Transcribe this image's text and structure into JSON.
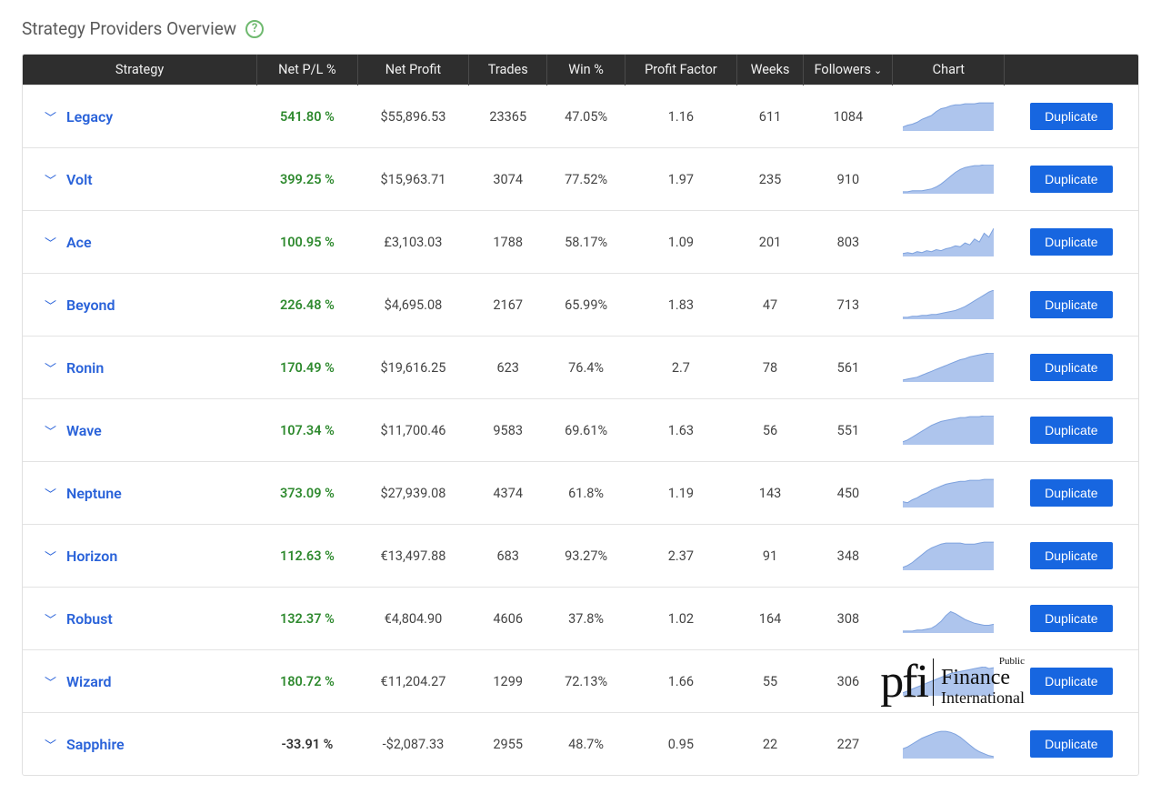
{
  "page": {
    "title": "Strategy Providers Overview",
    "help_tooltip": "?"
  },
  "table": {
    "headers": {
      "strategy": "Strategy",
      "net_pl": "Net P/L %",
      "net_profit": "Net Profit",
      "trades": "Trades",
      "win": "Win %",
      "profit_factor": "Profit Factor",
      "weeks": "Weeks",
      "followers": "Followers",
      "chart": "Chart",
      "action": ""
    },
    "sort_column": "followers",
    "sort_dir": "desc",
    "action_label": "Duplicate",
    "chart_style": {
      "width": 100,
      "height": 32,
      "fill_color": "#aec5ed",
      "stroke_color": "#7ea2de"
    },
    "colors": {
      "header_bg": "#2e2e2e",
      "header_fg": "#f0f0f0",
      "link": "#2962d9",
      "positive": "#2f8a2f",
      "negative": "#333333",
      "button_bg": "#1766e0",
      "border": "#e3e3e3"
    },
    "rows": [
      {
        "name": "Legacy",
        "net_pl": "541.80 %",
        "pl_positive": true,
        "net_profit": "$55,896.53",
        "trades": "23365",
        "win": "47.05%",
        "profit_factor": "1.16",
        "weeks": "611",
        "followers": "1084",
        "spark": [
          4,
          6,
          7,
          9,
          12,
          14,
          16,
          20,
          23,
          24,
          26,
          27,
          27,
          28,
          28,
          28,
          29,
          29,
          29,
          29
        ]
      },
      {
        "name": "Volt",
        "net_pl": "399.25 %",
        "pl_positive": true,
        "net_profit": "$15,963.71",
        "trades": "3074",
        "win": "77.52%",
        "profit_factor": "1.97",
        "weeks": "235",
        "followers": "910",
        "spark": [
          2,
          2,
          3,
          3,
          3,
          4,
          5,
          7,
          10,
          14,
          18,
          22,
          25,
          27,
          28,
          29,
          29,
          30,
          30,
          30
        ]
      },
      {
        "name": "Ace",
        "net_pl": "100.95 %",
        "pl_positive": true,
        "net_profit": "£3,103.03",
        "trades": "1788",
        "win": "58.17%",
        "profit_factor": "1.09",
        "weeks": "201",
        "followers": "803",
        "spark": [
          3,
          4,
          3,
          5,
          4,
          6,
          5,
          7,
          6,
          8,
          9,
          11,
          10,
          14,
          12,
          18,
          15,
          24,
          20,
          29
        ]
      },
      {
        "name": "Beyond",
        "net_pl": "226.48 %",
        "pl_positive": true,
        "net_profit": "$4,695.08",
        "trades": "2167",
        "win": "65.99%",
        "profit_factor": "1.83",
        "weeks": "47",
        "followers": "713",
        "spark": [
          2,
          2,
          3,
          3,
          4,
          4,
          5,
          5,
          6,
          7,
          8,
          9,
          11,
          13,
          16,
          19,
          22,
          25,
          28,
          30
        ]
      },
      {
        "name": "Ronin",
        "net_pl": "170.49 %",
        "pl_positive": true,
        "net_profit": "$19,616.25",
        "trades": "623",
        "win": "76.4%",
        "profit_factor": "2.7",
        "weeks": "78",
        "followers": "561",
        "spark": [
          2,
          3,
          4,
          5,
          7,
          9,
          11,
          13,
          15,
          17,
          19,
          21,
          23,
          24,
          26,
          27,
          28,
          29,
          30,
          30
        ]
      },
      {
        "name": "Wave",
        "net_pl": "107.34 %",
        "pl_positive": true,
        "net_profit": "$11,700.46",
        "trades": "9583",
        "win": "69.61%",
        "profit_factor": "1.63",
        "weeks": "56",
        "followers": "551",
        "spark": [
          3,
          5,
          8,
          11,
          14,
          17,
          20,
          22,
          24,
          25,
          26,
          27,
          28,
          28,
          29,
          29,
          29,
          30,
          30,
          30
        ]
      },
      {
        "name": "Neptune",
        "net_pl": "373.09 %",
        "pl_positive": true,
        "net_profit": "$27,939.08",
        "trades": "4374",
        "win": "61.8%",
        "profit_factor": "1.19",
        "weeks": "143",
        "followers": "450",
        "spark": [
          6,
          5,
          8,
          10,
          13,
          15,
          18,
          20,
          22,
          24,
          25,
          26,
          27,
          27,
          28,
          28,
          28,
          29,
          29,
          29
        ]
      },
      {
        "name": "Horizon",
        "net_pl": "112.63 %",
        "pl_positive": true,
        "net_profit": "€13,497.88",
        "trades": "683",
        "win": "93.27%",
        "profit_factor": "2.37",
        "weeks": "91",
        "followers": "348",
        "spark": [
          3,
          5,
          8,
          12,
          16,
          20,
          23,
          25,
          27,
          28,
          28,
          28,
          28,
          27,
          27,
          27,
          28,
          29,
          29,
          29
        ]
      },
      {
        "name": "Robust",
        "net_pl": "132.37 %",
        "pl_positive": true,
        "net_profit": "€4,804.90",
        "trades": "4606",
        "win": "37.8%",
        "profit_factor": "1.02",
        "weeks": "164",
        "followers": "308",
        "spark": [
          2,
          2,
          2,
          3,
          3,
          4,
          5,
          8,
          12,
          18,
          22,
          20,
          17,
          14,
          12,
          10,
          9,
          8,
          8,
          9
        ]
      },
      {
        "name": "Wizard",
        "net_pl": "180.72 %",
        "pl_positive": true,
        "net_profit": "€11,204.27",
        "trades": "1299",
        "win": "72.13%",
        "profit_factor": "1.66",
        "weeks": "55",
        "followers": "306",
        "spark": [
          3,
          5,
          7,
          9,
          11,
          13,
          15,
          17,
          19,
          21,
          23,
          24,
          25,
          26,
          27,
          28,
          29,
          30,
          28,
          29
        ]
      },
      {
        "name": "Sapphire",
        "net_pl": "-33.91 %",
        "pl_positive": false,
        "net_profit": "-$2,087.33",
        "trades": "2955",
        "win": "48.7%",
        "profit_factor": "0.95",
        "weeks": "22",
        "followers": "227",
        "spark": [
          10,
          12,
          15,
          18,
          21,
          23,
          25,
          27,
          28,
          28,
          27,
          25,
          22,
          18,
          14,
          10,
          7,
          5,
          3,
          2
        ]
      }
    ]
  },
  "watermark": {
    "logo": "pfi",
    "line1_small": "Public",
    "line1": "Finance",
    "line2": "International"
  }
}
